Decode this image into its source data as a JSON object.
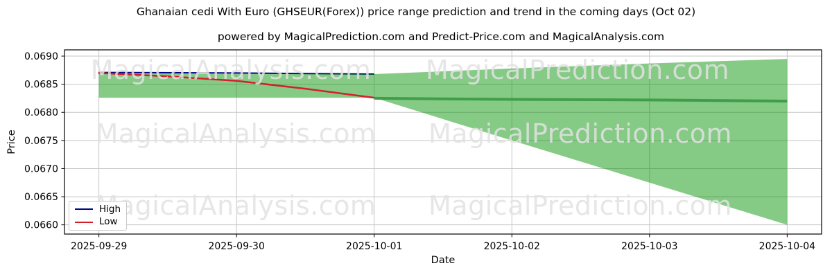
{
  "chart_data": {
    "type": "line",
    "title": "Ghanaian cedi With Euro (GHSEUR(Forex)) price range prediction and trend in the coming days (Oct 02)",
    "subtitle": "powered by MagicalPrediction.com and Predict-Price.com and MagicalAnalysis.com",
    "xlabel": "Date",
    "ylabel": "Price",
    "x_categories": [
      "2025-09-29",
      "2025-09-30",
      "2025-10-01",
      "2025-10-02",
      "2025-10-03",
      "2025-10-04"
    ],
    "yticks": [
      0.066,
      0.0665,
      0.067,
      0.0675,
      0.068,
      0.0685,
      0.069
    ],
    "ylim": [
      0.065836,
      0.069111
    ],
    "xlim_days": [
      -0.25,
      5.25
    ],
    "grid": true,
    "grid_color": "#c6c6c6",
    "legend_position": "lower left",
    "legend": [
      {
        "label": "High",
        "color": "#00008b"
      },
      {
        "label": "Low",
        "color": "#d41f2c"
      }
    ],
    "series": [
      {
        "name": "High",
        "color": "#00008b",
        "width": 2,
        "points": [
          [
            0,
            0.06871
          ],
          [
            1,
            0.0687
          ],
          [
            2,
            0.06868
          ]
        ]
      },
      {
        "name": "Low",
        "color": "#d41f2c",
        "width": 2.5,
        "points": [
          [
            0,
            0.0687
          ],
          [
            0.5,
            0.06864
          ],
          [
            1,
            0.06856
          ],
          [
            1.5,
            0.06842
          ],
          [
            2,
            0.06826
          ]
        ]
      },
      {
        "name": "Trend",
        "color": "#3f9e4a",
        "width": 4,
        "points": [
          [
            2,
            0.06825
          ],
          [
            3,
            0.06823
          ],
          [
            4,
            0.06822
          ],
          [
            5,
            0.0682
          ]
        ]
      }
    ],
    "band": {
      "name": "predicted price range",
      "color": "#019001",
      "opacity": 0.48,
      "x": [
        0,
        1,
        2,
        3,
        4,
        5
      ],
      "top": [
        0.0687,
        0.06869,
        0.06868,
        0.06878,
        0.06887,
        0.06895
      ],
      "bottom": [
        0.06826,
        0.06826,
        0.06826,
        0.0675,
        0.06675,
        0.066
      ]
    }
  },
  "watermarks": {
    "left_text": "MagicalAnalysis.com",
    "right_text": "MagicalPrediction.com"
  }
}
